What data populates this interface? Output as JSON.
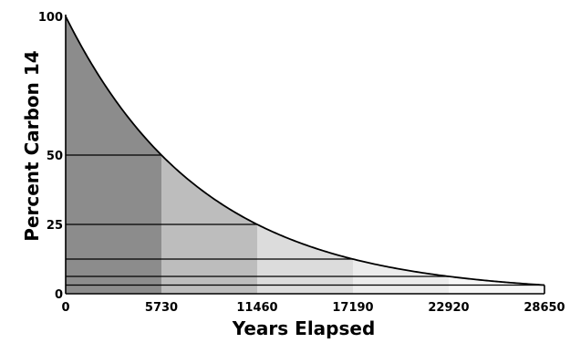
{
  "chart_data": {
    "type": "area",
    "xlabel": "Years Elapsed",
    "ylabel": "Percent Carbon 14",
    "xlim": [
      0,
      28650
    ],
    "ylim": [
      0,
      100
    ],
    "x_ticks": [
      0,
      5730,
      11460,
      17190,
      22920,
      28650
    ],
    "y_ticks": [
      0,
      25,
      50,
      100
    ],
    "half_life_years": 5730,
    "curve": {
      "x": [
        0,
        5730,
        11460,
        17190,
        22920,
        28650
      ],
      "y": [
        100,
        50,
        25,
        12.5,
        6.25,
        3.125
      ]
    },
    "band_colors": [
      "#8c8c8c",
      "#bdbdbd",
      "#dcdcdc",
      "#ececec",
      "#f6f6f6"
    ],
    "grid": false,
    "legend": "none"
  }
}
